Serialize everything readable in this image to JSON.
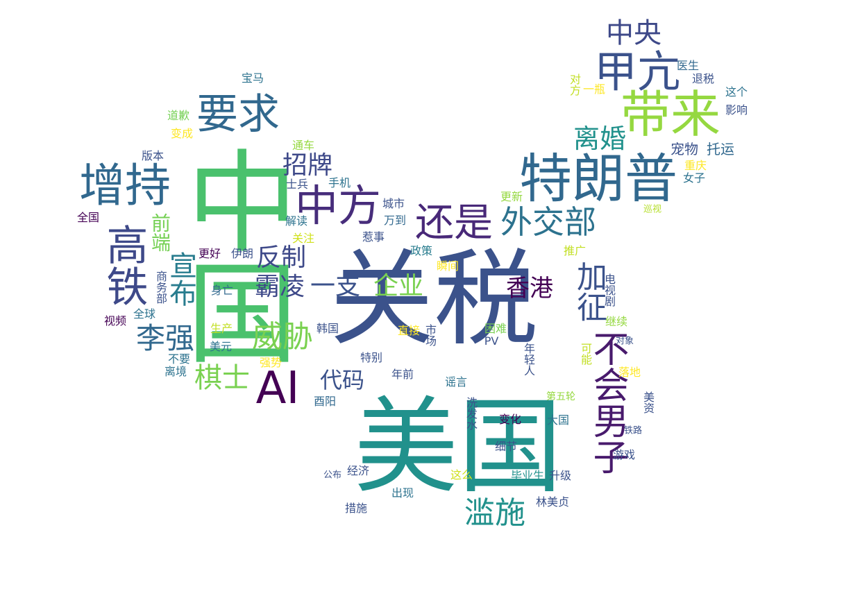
{
  "words": [
    {
      "t": "美国",
      "c": "#21918c"
    },
    {
      "t": "关税",
      "c": "#3b528b"
    },
    {
      "t": "中国",
      "c": "#4ac16d"
    },
    {
      "t": "特朗普",
      "c": "#31688e"
    },
    {
      "t": "带来",
      "c": "#95d840"
    },
    {
      "t": "甲亢",
      "c": "#3b528b"
    },
    {
      "t": "中央",
      "c": "#3e4989"
    },
    {
      "t": "要求",
      "c": "#31688e"
    },
    {
      "t": "增持",
      "c": "#31688e"
    },
    {
      "t": "高铁",
      "c": "#3e4989"
    },
    {
      "t": "中方",
      "c": "#472d7b"
    },
    {
      "t": "还是",
      "c": "#482878"
    },
    {
      "t": "外交部",
      "c": "#2c728e"
    },
    {
      "t": "离婚",
      "c": "#21918c"
    },
    {
      "t": "招牌",
      "c": "#3e4989"
    },
    {
      "t": "AI",
      "c": "#440154"
    },
    {
      "t": "不会男子",
      "c": "#481a6c"
    },
    {
      "t": "加征",
      "c": "#3b528b"
    },
    {
      "t": "滥施",
      "c": "#21918c"
    },
    {
      "t": "李强",
      "c": "#31688e"
    },
    {
      "t": "宣布",
      "c": "#287c8e"
    },
    {
      "t": "威胁",
      "c": "#7ad151"
    },
    {
      "t": "棋士",
      "c": "#7ad151"
    },
    {
      "t": "反制",
      "c": "#3e4989"
    },
    {
      "t": "霸凌",
      "c": "#3e4989"
    },
    {
      "t": "一支",
      "c": "#3b528b"
    },
    {
      "t": "企业",
      "c": "#7ad151"
    },
    {
      "t": "香港",
      "c": "#440154"
    },
    {
      "t": "代码",
      "c": "#3b528b"
    },
    {
      "t": "前端",
      "c": "#75d054"
    },
    {
      "t": "宠物",
      "c": "#3b528b"
    },
    {
      "t": "托运",
      "c": "#31688e"
    },
    {
      "t": "重庆",
      "c": "#fde725"
    },
    {
      "t": "女子",
      "c": "#2c728e"
    },
    {
      "t": "巡视",
      "c": "#b5de2b"
    },
    {
      "t": "医生",
      "c": "#31688e"
    },
    {
      "t": "退税",
      "c": "#3b528b"
    },
    {
      "t": "这个",
      "c": "#2c728e"
    },
    {
      "t": "影响",
      "c": "#3b528b"
    },
    {
      "t": "对方",
      "c": "#c2df23"
    },
    {
      "t": "一瓶",
      "c": "#fde725"
    },
    {
      "t": "宝马",
      "c": "#2c728e"
    },
    {
      "t": "道歉",
      "c": "#75d054"
    },
    {
      "t": "变成",
      "c": "#fde725"
    },
    {
      "t": "版本",
      "c": "#3b528b"
    },
    {
      "t": "通车",
      "c": "#95d840"
    },
    {
      "t": "手机",
      "c": "#2c728e"
    },
    {
      "t": "士兵",
      "c": "#3b528b"
    },
    {
      "t": "城市",
      "c": "#3b528b"
    },
    {
      "t": "更新",
      "c": "#95d840"
    },
    {
      "t": "全国",
      "c": "#440154"
    },
    {
      "t": "解读",
      "c": "#2c728e"
    },
    {
      "t": "万到",
      "c": "#31688e"
    },
    {
      "t": "关注",
      "c": "#d0e11c"
    },
    {
      "t": "惹事",
      "c": "#3b528b"
    },
    {
      "t": "政策",
      "c": "#287c8e"
    },
    {
      "t": "推广",
      "c": "#c2df23"
    },
    {
      "t": "更好",
      "c": "#440154"
    },
    {
      "t": "伊朗",
      "c": "#3b528b"
    },
    {
      "t": "瞬间",
      "c": "#fde725"
    },
    {
      "t": "商务部",
      "c": "#3b528b"
    },
    {
      "t": "身亡",
      "c": "#31688e"
    },
    {
      "t": "电视剧",
      "c": "#3b528b"
    },
    {
      "t": "视频",
      "c": "#440154"
    },
    {
      "t": "全球",
      "c": "#2c728e"
    },
    {
      "t": "继续",
      "c": "#95d840"
    },
    {
      "t": "生产",
      "c": "#c2df23"
    },
    {
      "t": "韩国",
      "c": "#3b528b"
    },
    {
      "t": "直接",
      "c": "#fde725"
    },
    {
      "t": "市场",
      "c": "#3b528b"
    },
    {
      "t": "困难",
      "c": "#7ad151"
    },
    {
      "t": "对象",
      "c": "#3b528b"
    },
    {
      "t": "美元",
      "c": "#2c728e"
    },
    {
      "t": "PV",
      "c": "#3b528b"
    },
    {
      "t": "年轻人",
      "c": "#3b528b"
    },
    {
      "t": "可能",
      "c": "#c2df23"
    },
    {
      "t": "不要",
      "c": "#2c728e"
    },
    {
      "t": "强势",
      "c": "#fde725"
    },
    {
      "t": "特别",
      "c": "#3b528b"
    },
    {
      "t": "离境",
      "c": "#2c728e"
    },
    {
      "t": "落地",
      "c": "#fde725"
    },
    {
      "t": "年前",
      "c": "#3b528b"
    },
    {
      "t": "谣言",
      "c": "#2c728e"
    },
    {
      "t": "第五轮",
      "c": "#95d840"
    },
    {
      "t": "美资",
      "c": "#3b528b"
    },
    {
      "t": "酉阳",
      "c": "#31688e"
    },
    {
      "t": "洗发水",
      "c": "#3b528b"
    },
    {
      "t": "变化",
      "c": "#440154"
    },
    {
      "t": "大国",
      "c": "#2c728e"
    },
    {
      "t": "铁路",
      "c": "#3b528b"
    },
    {
      "t": "细节",
      "c": "#3b528b"
    },
    {
      "t": "游戏",
      "c": "#3b528b"
    },
    {
      "t": "公布",
      "c": "#3b528b"
    },
    {
      "t": "经济",
      "c": "#3b528b"
    },
    {
      "t": "这么",
      "c": "#d0e11c"
    },
    {
      "t": "毕业生",
      "c": "#21918c"
    },
    {
      "t": "升级",
      "c": "#3b528b"
    },
    {
      "t": "出现",
      "c": "#2c728e"
    },
    {
      "t": "措施",
      "c": "#3b528b"
    },
    {
      "t": "林美贞",
      "c": "#3b528b"
    }
  ]
}
